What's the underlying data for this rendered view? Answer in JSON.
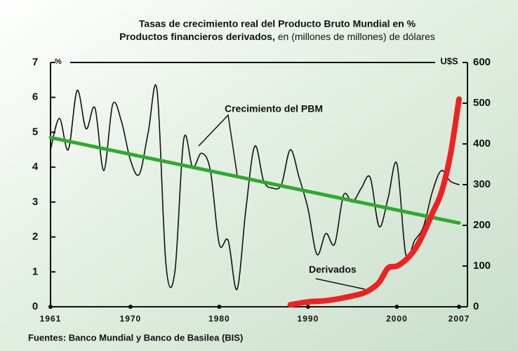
{
  "chart_data": {
    "type": "line",
    "title_line1": "Tasas de crecimiento real del Producto Bruto Mundial en %",
    "title_line2_bold": "Productos financieros derivados,",
    "title_line2_rest": " en (millones de millones) de dólares",
    "y_unit": "%",
    "y2_unit": "U$S",
    "source": "Fuentes: Banco Mundial y Banco de Basilea (BIS)",
    "xlim": [
      1961,
      2007
    ],
    "xticks": [
      1961,
      1970,
      1980,
      1990,
      2000,
      2007
    ],
    "ylim": [
      0,
      7
    ],
    "yticks": [
      0,
      1,
      2,
      3,
      4,
      5,
      6,
      7
    ],
    "y2lim": [
      0,
      600
    ],
    "y2ticks": [
      0,
      100,
      200,
      300,
      400,
      500,
      600
    ],
    "series": [
      {
        "name": "Crecimiento del PBM",
        "color": "#111111",
        "axis": "y",
        "x": [
          1961,
          1962,
          1963,
          1964,
          1965,
          1966,
          1967,
          1968,
          1969,
          1970,
          1971,
          1972,
          1973,
          1974,
          1975,
          1976,
          1977,
          1978,
          1979,
          1980,
          1981,
          1982,
          1983,
          1984,
          1985,
          1986,
          1987,
          1988,
          1989,
          1990,
          1991,
          1992,
          1993,
          1994,
          1995,
          1996,
          1997,
          1998,
          1999,
          2000,
          2001,
          2002,
          2003,
          2004,
          2005,
          2006,
          2007
        ],
        "values": [
          4.5,
          5.4,
          4.5,
          6.2,
          5.1,
          5.7,
          3.9,
          5.8,
          5.3,
          4.2,
          3.8,
          5.0,
          6.2,
          1.2,
          1.0,
          4.8,
          4.0,
          4.4,
          3.9,
          1.8,
          1.9,
          0.5,
          2.8,
          4.6,
          3.6,
          3.4,
          3.5,
          4.5,
          3.7,
          2.8,
          1.5,
          2.1,
          1.8,
          3.2,
          3.0,
          3.4,
          3.7,
          2.3,
          3.1,
          4.1,
          1.5,
          1.9,
          2.3,
          3.3,
          3.9,
          3.6,
          3.5
        ]
      },
      {
        "color": "#2eaa2e",
        "axis": "y",
        "x": [
          1961,
          2007
        ],
        "values": [
          4.85,
          2.4
        ]
      },
      {
        "name": "Derivados",
        "color": "#ee2222",
        "axis": "y2",
        "x": [
          1988,
          1990,
          1992,
          1994,
          1996,
          1997,
          1998,
          1999,
          2000,
          2001,
          2002,
          2003,
          2004,
          2005,
          2006,
          2007
        ],
        "values": [
          5,
          12,
          15,
          22,
          32,
          42,
          60,
          95,
          100,
          115,
          140,
          180,
          230,
          280,
          370,
          510
        ]
      }
    ]
  }
}
